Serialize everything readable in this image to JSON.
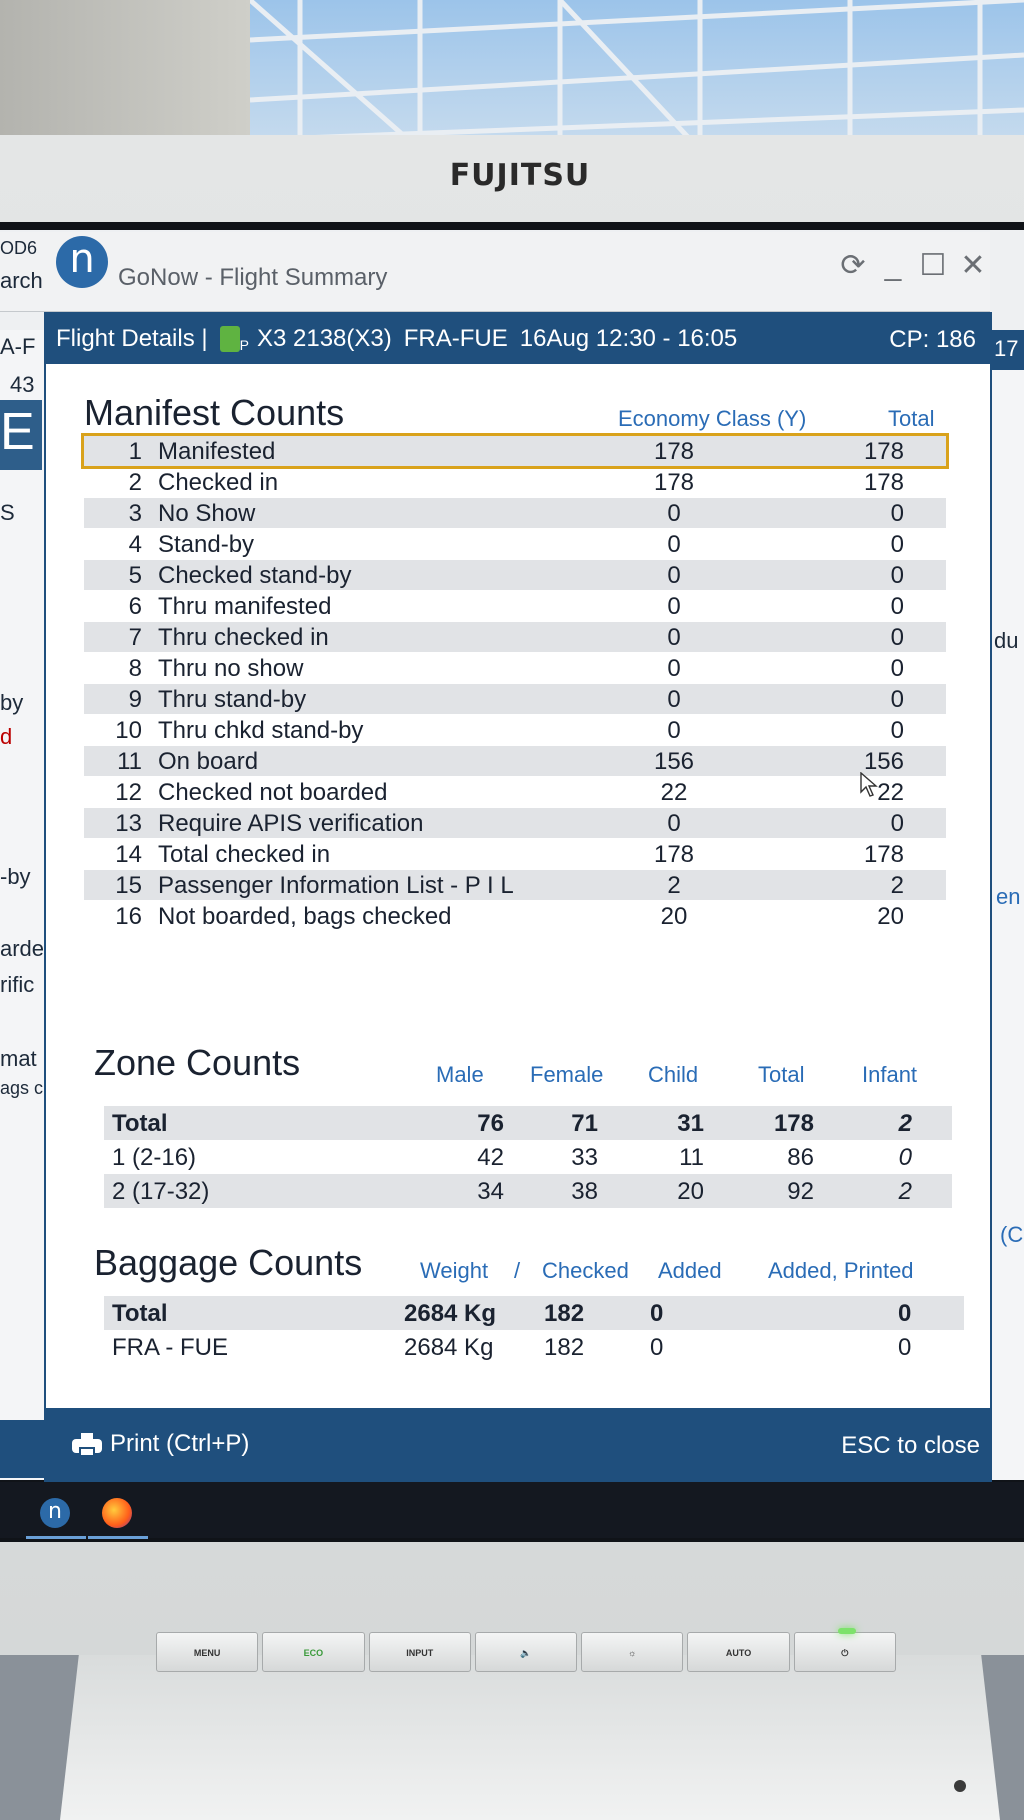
{
  "monitor": {
    "brand": "FUJITSU",
    "buttons": [
      "MENU",
      "ECO",
      "INPUT",
      "🔈",
      "☼",
      "AUTO",
      "⏻"
    ]
  },
  "window": {
    "title": "GoNow - Flight Summary",
    "app_logo_letter": "n",
    "controls": [
      "⟳",
      "_",
      "☐",
      "✕"
    ]
  },
  "background_fragments": {
    "left": [
      "OD6",
      "arch",
      "A-F",
      "43",
      "E",
      "S",
      "by",
      "d",
      "-by",
      "arde",
      "rific",
      "mat",
      "ags c"
    ],
    "right": [
      "17",
      "du",
      "en",
      "(C"
    ]
  },
  "header": {
    "title": "Flight Details |",
    "carrier_code": "P",
    "flight": "X3 2138(X3)",
    "route": "FRA-FUE",
    "date_time": "16Aug 12:30 - 16:05",
    "cp": "CP: 186"
  },
  "manifest": {
    "title": "Manifest Counts",
    "col_economy": "Economy Class (Y)",
    "col_total": "Total",
    "rows": [
      {
        "num": "1",
        "label": "Manifested",
        "economy": "178",
        "total": "178"
      },
      {
        "num": "2",
        "label": "Checked in",
        "economy": "178",
        "total": "178"
      },
      {
        "num": "3",
        "label": "No Show",
        "economy": "0",
        "total": "0"
      },
      {
        "num": "4",
        "label": "Stand-by",
        "economy": "0",
        "total": "0"
      },
      {
        "num": "5",
        "label": "Checked stand-by",
        "economy": "0",
        "total": "0"
      },
      {
        "num": "6",
        "label": "Thru manifested",
        "economy": "0",
        "total": "0"
      },
      {
        "num": "7",
        "label": "Thru checked in",
        "economy": "0",
        "total": "0"
      },
      {
        "num": "8",
        "label": "Thru no show",
        "economy": "0",
        "total": "0"
      },
      {
        "num": "9",
        "label": "Thru stand-by",
        "economy": "0",
        "total": "0"
      },
      {
        "num": "10",
        "label": "Thru chkd stand-by",
        "economy": "0",
        "total": "0"
      },
      {
        "num": "11",
        "label": "On board",
        "economy": "156",
        "total": "156"
      },
      {
        "num": "12",
        "label": "Checked not boarded",
        "economy": "22",
        "total": "22"
      },
      {
        "num": "13",
        "label": "Require APIS verification",
        "economy": "0",
        "total": "0"
      },
      {
        "num": "14",
        "label": "Total checked in",
        "economy": "178",
        "total": "178"
      },
      {
        "num": "15",
        "label": "Passenger Information List - P I L",
        "economy": "2",
        "total": "2"
      },
      {
        "num": "16",
        "label": "Not boarded, bags checked",
        "economy": "20",
        "total": "20"
      }
    ]
  },
  "zones": {
    "title": "Zone Counts",
    "columns": [
      "Male",
      "Female",
      "Child",
      "Total",
      "Infant"
    ],
    "rows": [
      {
        "label": "Total",
        "male": "76",
        "female": "71",
        "child": "31",
        "total": "178",
        "infant": "2"
      },
      {
        "label": "1 (2-16)",
        "male": "42",
        "female": "33",
        "child": "11",
        "total": "86",
        "infant": "0"
      },
      {
        "label": "2 (17-32)",
        "male": "34",
        "female": "38",
        "child": "20",
        "total": "92",
        "infant": "2"
      }
    ]
  },
  "baggage": {
    "title": "Baggage Counts",
    "col_weight": "Weight",
    "col_sep": "/",
    "col_checked": "Checked",
    "col_added": "Added",
    "col_added_printed": "Added, Printed",
    "rows": [
      {
        "label": "Total",
        "weight": "2684 Kg",
        "checked": "182",
        "added": "0",
        "added_printed": "0"
      },
      {
        "label": "FRA - FUE",
        "weight": "2684 Kg",
        "checked": "182",
        "added": "0",
        "added_printed": "0"
      }
    ]
  },
  "footer": {
    "print_label": "Print (Ctrl+P)",
    "close_label": "ESC to close"
  },
  "colors": {
    "header_blue": "#1f4f7d",
    "column_head_blue": "#2a6cb6",
    "highlight": "#d9a21b",
    "row_shade": "#e1e3e6"
  }
}
